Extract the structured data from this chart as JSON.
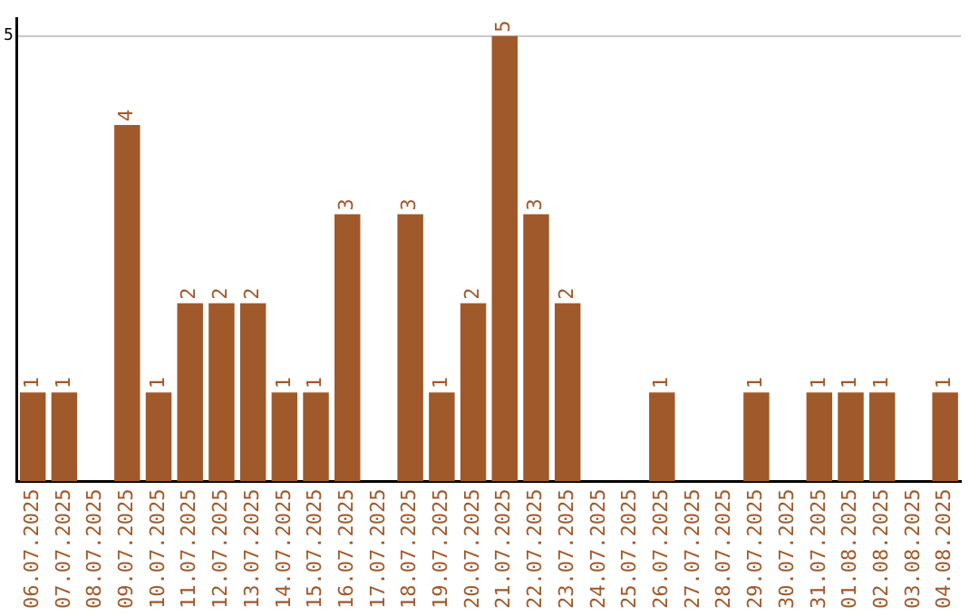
{
  "chart_data": {
    "type": "bar",
    "categories": [
      "06.07.2025",
      "07.07.2025",
      "08.07.2025",
      "09.07.2025",
      "10.07.2025",
      "11.07.2025",
      "12.07.2025",
      "13.07.2025",
      "14.07.2025",
      "15.07.2025",
      "16.07.2025",
      "17.07.2025",
      "18.07.2025",
      "19.07.2025",
      "20.07.2025",
      "21.07.2025",
      "22.07.2025",
      "23.07.2025",
      "24.07.2025",
      "25.07.2025",
      "26.07.2025",
      "27.07.2025",
      "28.07.2025",
      "29.07.2025",
      "30.07.2025",
      "31.07.2025",
      "01.08.2025",
      "02.08.2025",
      "03.08.2025",
      "04.08.2025"
    ],
    "values": [
      1,
      1,
      null,
      4,
      1,
      2,
      2,
      2,
      1,
      1,
      3,
      null,
      3,
      1,
      2,
      5,
      3,
      2,
      null,
      null,
      1,
      null,
      null,
      1,
      null,
      1,
      1,
      1,
      null,
      1
    ],
    "color": "#a0592a",
    "ylim": [
      0,
      5.2
    ],
    "yticks": [
      5
    ],
    "grid": "y",
    "data_labels": true,
    "legend": false
  }
}
